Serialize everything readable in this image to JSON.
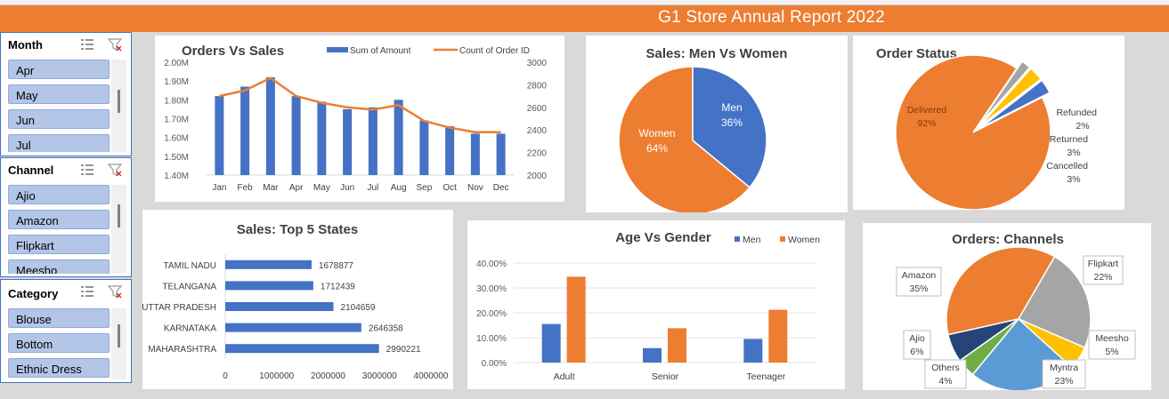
{
  "report_title": "G1 Store Annual Report 2022",
  "slicers": {
    "month": {
      "title": "Month",
      "items": [
        "Apr",
        "May",
        "Jun",
        "Jul"
      ]
    },
    "channel": {
      "title": "Channel",
      "items": [
        "Ajio",
        "Amazon",
        "Flipkart",
        "Meesho"
      ]
    },
    "category": {
      "title": "Category",
      "items": [
        "Blouse",
        "Bottom",
        "Ethnic Dress"
      ]
    }
  },
  "colors": {
    "blue": "#4472c4",
    "orange": "#ed7d31",
    "gray": "#a5a5a5",
    "yellow": "#ffc000",
    "lightblue": "#5b9bd5",
    "green": "#70ad47",
    "navy": "#264478",
    "slicer_item": "#b4c6e7"
  },
  "chart_data": [
    {
      "type": "bar",
      "title": "Orders Vs Sales",
      "categories": [
        "Jan",
        "Feb",
        "Mar",
        "Apr",
        "May",
        "Jun",
        "Jul",
        "Aug",
        "Sep",
        "Oct",
        "Nov",
        "Dec"
      ],
      "series": [
        {
          "name": "Sum of Amount",
          "axis": "left",
          "values": [
            1820000,
            1870000,
            1920000,
            1820000,
            1790000,
            1750000,
            1760000,
            1800000,
            1690000,
            1660000,
            1620000,
            1620000
          ]
        },
        {
          "name": "Count of Order ID",
          "axis": "right",
          "kind": "line",
          "values": [
            2700,
            2750,
            2860,
            2700,
            2640,
            2600,
            2580,
            2620,
            2480,
            2420,
            2380,
            2380
          ]
        }
      ],
      "ylim": [
        1400000,
        2000000
      ],
      "yticks": [
        "1.40M",
        "1.50M",
        "1.60M",
        "1.70M",
        "1.80M",
        "1.90M",
        "2.00M"
      ],
      "y2lim": [
        2000,
        3000
      ],
      "y2ticks": [
        "2000",
        "2200",
        "2400",
        "2600",
        "2800",
        "3000"
      ],
      "legend": "top"
    },
    {
      "type": "pie",
      "title": "Sales: Men Vs Women",
      "slices": [
        {
          "label": "Men",
          "value": 36,
          "display": "36%"
        },
        {
          "label": "Women",
          "value": 64,
          "display": "64%"
        }
      ]
    },
    {
      "type": "pie",
      "title": "Order Status",
      "slices": [
        {
          "label": "Delivered",
          "value": 92,
          "display": "92%"
        },
        {
          "label": "Refunded",
          "value": 2,
          "display": "2%"
        },
        {
          "label": "Returned",
          "value": 3,
          "display": "3%"
        },
        {
          "label": "Cancelled",
          "value": 3,
          "display": "3%"
        }
      ]
    },
    {
      "type": "bar",
      "orientation": "horizontal",
      "title": "Sales: Top 5 States",
      "categories": [
        "TAMIL NADU",
        "TELANGANA",
        "UTTAR PRADESH",
        "KARNATAKA",
        "MAHARASHTRA"
      ],
      "values": [
        1678877,
        1712439,
        2104659,
        2646358,
        2990221
      ],
      "xlim": [
        0,
        4000000
      ],
      "xticks": [
        "0",
        "1000000",
        "2000000",
        "3000000",
        "4000000"
      ]
    },
    {
      "type": "bar",
      "title": "Age Vs Gender",
      "categories": [
        "Adult",
        "Senior",
        "Teenager"
      ],
      "series": [
        {
          "name": "Men",
          "values": [
            15.5,
            5.8,
            9.5
          ]
        },
        {
          "name": "Women",
          "values": [
            34.5,
            13.8,
            21.2
          ]
        }
      ],
      "ylim": [
        0,
        40
      ],
      "yticks": [
        "0.00%",
        "10.00%",
        "20.00%",
        "30.00%",
        "40.00%"
      ],
      "legend": "top-right"
    },
    {
      "type": "pie",
      "title": "Orders: Channels",
      "slices": [
        {
          "label": "Amazon",
          "value": 35,
          "display": "35%"
        },
        {
          "label": "Flipkart",
          "value": 22,
          "display": "22%"
        },
        {
          "label": "Meesho",
          "value": 5,
          "display": "5%"
        },
        {
          "label": "Myntra",
          "value": 23,
          "display": "23%"
        },
        {
          "label": "Others",
          "value": 4,
          "display": "4%"
        },
        {
          "label": "Ajio",
          "value": 6,
          "display": "6%"
        }
      ]
    }
  ]
}
